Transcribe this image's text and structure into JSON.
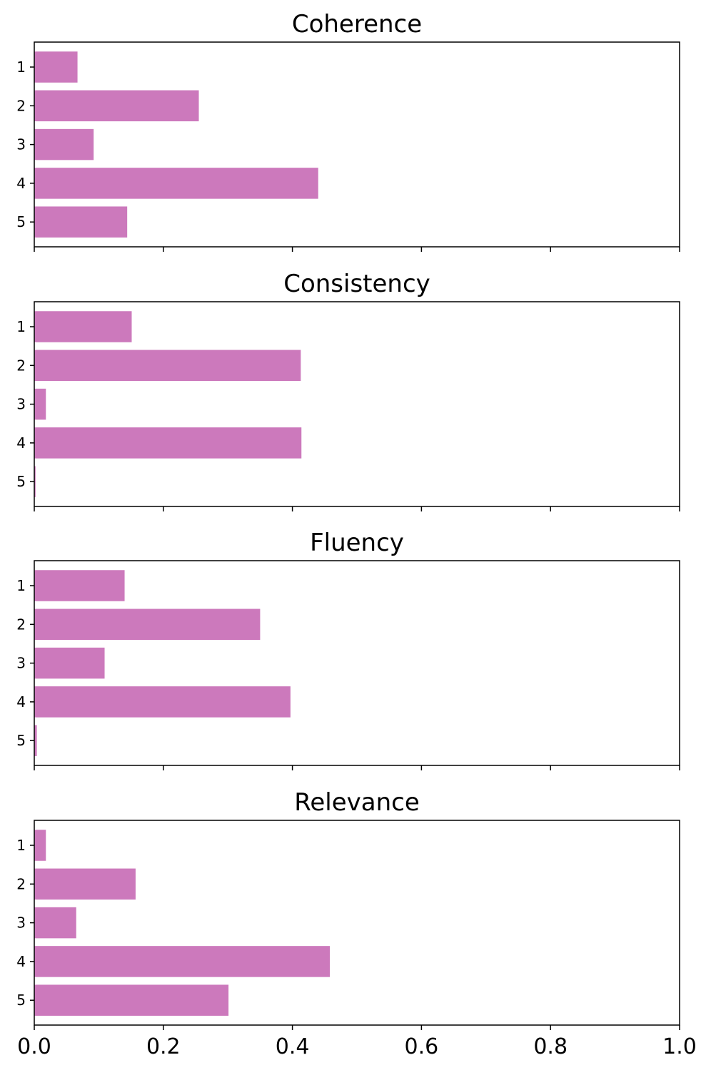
{
  "chart_data": [
    {
      "type": "bar",
      "orientation": "horizontal",
      "title": "Coherence",
      "categories": [
        "1",
        "2",
        "3",
        "4",
        "5"
      ],
      "values": [
        0.067,
        0.255,
        0.092,
        0.44,
        0.144
      ],
      "xlim": [
        0.0,
        1.0
      ],
      "bar_color": "#cc79bc",
      "grid": false
    },
    {
      "type": "bar",
      "orientation": "horizontal",
      "title": "Consistency",
      "categories": [
        "1",
        "2",
        "3",
        "4",
        "5"
      ],
      "values": [
        0.151,
        0.413,
        0.018,
        0.414,
        0.002
      ],
      "xlim": [
        0.0,
        1.0
      ],
      "bar_color": "#cc79bc",
      "grid": false
    },
    {
      "type": "bar",
      "orientation": "horizontal",
      "title": "Fluency",
      "categories": [
        "1",
        "2",
        "3",
        "4",
        "5"
      ],
      "values": [
        0.14,
        0.35,
        0.109,
        0.397,
        0.004
      ],
      "xlim": [
        0.0,
        1.0
      ],
      "bar_color": "#cc79bc",
      "grid": false
    },
    {
      "type": "bar",
      "orientation": "horizontal",
      "title": "Relevance",
      "categories": [
        "1",
        "2",
        "3",
        "4",
        "5"
      ],
      "values": [
        0.018,
        0.157,
        0.065,
        0.458,
        0.301
      ],
      "xlim": [
        0.0,
        1.0
      ],
      "bar_color": "#cc79bc",
      "grid": false
    }
  ],
  "x_ticks": [
    "0.0",
    "0.2",
    "0.4",
    "0.6",
    "0.8",
    "1.0"
  ],
  "x_tick_values": [
    0.0,
    0.2,
    0.4,
    0.6,
    0.8,
    1.0
  ],
  "shared_x": true
}
